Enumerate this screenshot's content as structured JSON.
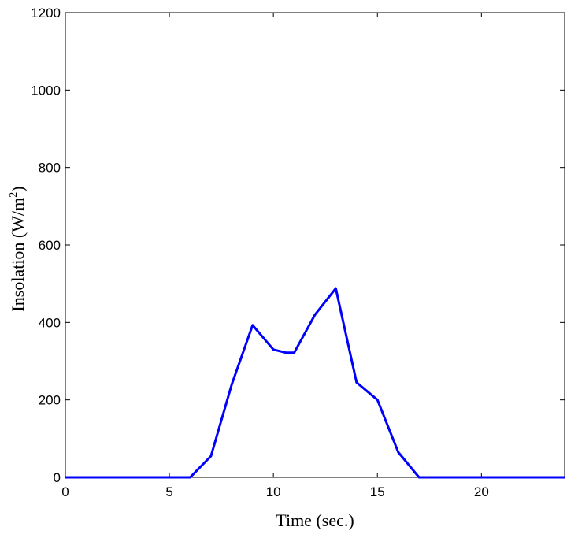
{
  "chart_data": {
    "type": "line",
    "title": "",
    "xlabel": "Time (sec.)",
    "ylabel_main": "Insolation (W/m",
    "ylabel_sup": "2",
    "ylabel_close": ")",
    "xlim": [
      0,
      24
    ],
    "ylim": [
      0,
      1200
    ],
    "grid": false,
    "x_ticks": [
      0,
      5,
      10,
      15,
      20
    ],
    "y_ticks": [
      0,
      200,
      400,
      600,
      800,
      1000,
      1200
    ],
    "series": [
      {
        "color": "#0000ff",
        "x": [
          0,
          6,
          7,
          8,
          9,
          10,
          10.6,
          11,
          12,
          13,
          14,
          15,
          16,
          17,
          24
        ],
        "y": [
          0,
          0,
          55,
          240,
          393,
          330,
          322,
          322,
          420,
          488,
          245,
          200,
          65,
          0,
          0
        ]
      }
    ]
  }
}
